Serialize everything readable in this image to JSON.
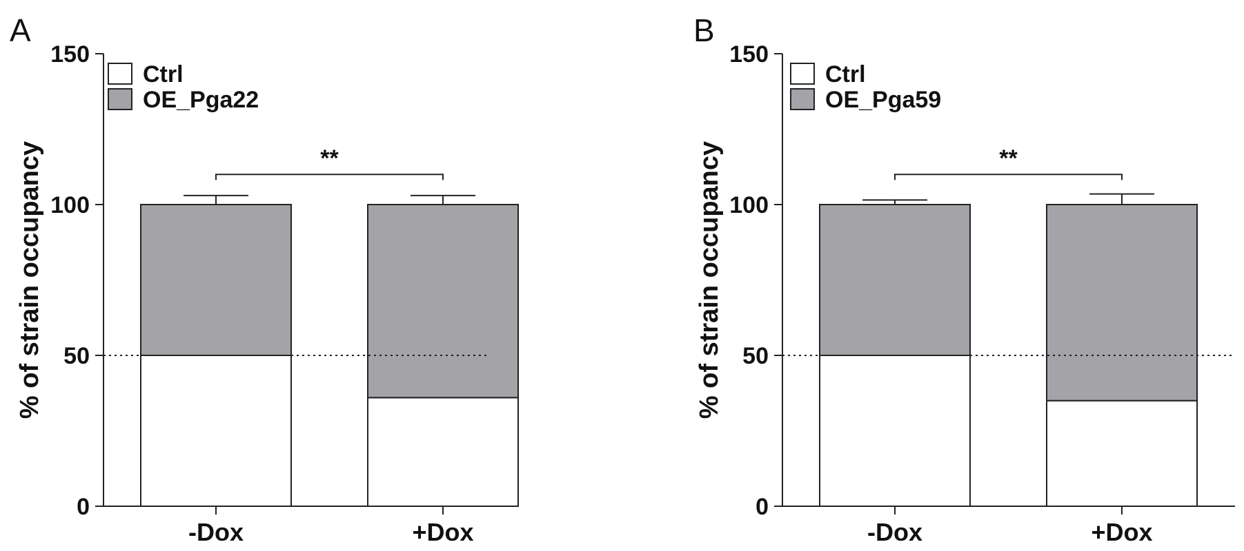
{
  "chart_data": [
    {
      "type": "bar",
      "stacked": true,
      "panel_label": "A",
      "categories": [
        "-Dox",
        "+Dox"
      ],
      "series": [
        {
          "name": "Ctrl",
          "values": [
            50,
            36
          ],
          "error": [
            3,
            3
          ],
          "color": "#ffffff"
        },
        {
          "name": "OE_Pga22",
          "values": [
            50,
            64
          ],
          "error": [
            3,
            3
          ],
          "color": "#a3a3a8"
        }
      ],
      "ylabel": "% of strain occupancy",
      "xlabel": "",
      "ylim": [
        0,
        150
      ],
      "yticks": [
        "0",
        "50",
        "100",
        "150"
      ],
      "reference_line": 50,
      "significance": {
        "label": "**",
        "between": [
          "-Dox",
          "+Dox"
        ]
      },
      "legend_position": "top-left",
      "grid": false
    },
    {
      "type": "bar",
      "stacked": true,
      "panel_label": "B",
      "categories": [
        "-Dox",
        "+Dox"
      ],
      "series": [
        {
          "name": "Ctrl",
          "values": [
            50,
            35
          ],
          "error": [
            1.5,
            3
          ],
          "color": "#ffffff"
        },
        {
          "name": "OE_Pga59",
          "values": [
            50,
            65
          ],
          "error": [
            1.5,
            3.5
          ],
          "color": "#a3a3a8"
        }
      ],
      "ylabel": "% of strain occupancy",
      "xlabel": "",
      "ylim": [
        0,
        150
      ],
      "yticks": [
        "0",
        "50",
        "100",
        "150"
      ],
      "reference_line": 50,
      "significance": {
        "label": "**",
        "between": [
          "-Dox",
          "+Dox"
        ]
      },
      "legend_position": "top-left",
      "grid": false
    }
  ]
}
